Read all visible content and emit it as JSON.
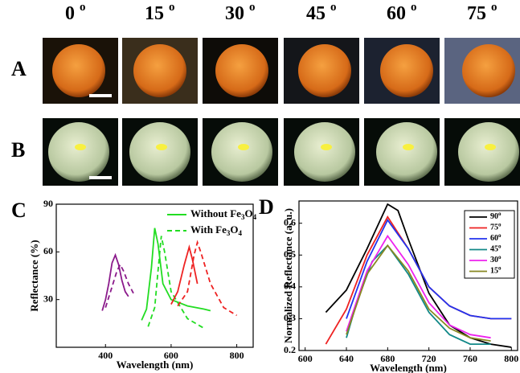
{
  "degree_mark": "o",
  "header": {
    "angles": [
      "0",
      "15",
      "30",
      "45",
      "60",
      "75"
    ]
  },
  "rows": [
    "A",
    "B"
  ],
  "chart_data": [
    {
      "type": "line",
      "panel": "C",
      "xlabel": "Wavelength (nm)",
      "ylabel": "Reflectance (%)",
      "xlim": [
        250,
        850
      ],
      "ylim": [
        0,
        90
      ],
      "xticks": [
        400,
        600,
        800
      ],
      "yticks": [
        30,
        60,
        90
      ],
      "legend": [
        {
          "name": "Without Fe3O4",
          "color": "#22dd22",
          "dashed": false
        },
        {
          "name": "With Fe3O4",
          "color": "#22dd22",
          "dashed": true
        }
      ],
      "series": [
        {
          "color": "#8b1a8b",
          "dashed": false,
          "x": [
            390,
            400,
            410,
            420,
            430,
            440,
            450,
            460,
            470
          ],
          "values": [
            23,
            30,
            40,
            53,
            58,
            52,
            42,
            35,
            32
          ]
        },
        {
          "color": "#8b1a8b",
          "dashed": true,
          "x": [
            400,
            420,
            435,
            445,
            455,
            470,
            485
          ],
          "values": [
            25,
            38,
            48,
            52,
            48,
            40,
            34
          ]
        },
        {
          "color": "#22dd22",
          "dashed": false,
          "x": [
            510,
            525,
            540,
            550,
            560,
            575,
            600,
            650,
            700,
            720
          ],
          "values": [
            17,
            24,
            50,
            75,
            65,
            40,
            30,
            26,
            24,
            23
          ]
        },
        {
          "color": "#22dd22",
          "dashed": true,
          "x": [
            530,
            550,
            560,
            570,
            580,
            600,
            650,
            700
          ],
          "values": [
            13,
            25,
            48,
            70,
            60,
            35,
            18,
            12
          ]
        },
        {
          "color": "#ee2222",
          "dashed": false,
          "x": [
            600,
            620,
            640,
            655,
            665,
            680
          ],
          "values": [
            27,
            35,
            52,
            63,
            55,
            40
          ]
        },
        {
          "color": "#ee2222",
          "dashed": true,
          "x": [
            620,
            650,
            670,
            680,
            690,
            720,
            760,
            800
          ],
          "values": [
            26,
            35,
            58,
            66,
            60,
            40,
            25,
            20
          ]
        }
      ]
    },
    {
      "type": "line",
      "panel": "D",
      "xlabel": "Wavelength (nm)",
      "ylabel": "Normalized Reflectance (a. u.)",
      "xlim": [
        594,
        806
      ],
      "ylim": [
        0.2,
        0.67
      ],
      "xticks": [
        600,
        640,
        680,
        720,
        760,
        800
      ],
      "yticks": [
        0.2,
        0.3,
        0.4,
        0.5,
        0.6
      ],
      "series": [
        {
          "name": "90",
          "color": "#000000",
          "dashed": false,
          "x": [
            620,
            640,
            660,
            680,
            690,
            700,
            720,
            740,
            760,
            780,
            800
          ],
          "values": [
            0.32,
            0.39,
            0.52,
            0.66,
            0.64,
            0.55,
            0.38,
            0.28,
            0.24,
            0.22,
            0.21
          ]
        },
        {
          "name": "75",
          "color": "#ee2222",
          "dashed": false,
          "x": [
            620,
            640,
            660,
            680,
            700,
            720,
            740,
            760,
            780,
            800
          ],
          "values": [
            0.22,
            0.33,
            0.5,
            0.62,
            0.52,
            0.4,
            0.34,
            0.31,
            0.3,
            0.3
          ]
        },
        {
          "name": "60",
          "color": "#2233ee",
          "dashed": false,
          "x": [
            640,
            660,
            680,
            700,
            720,
            740,
            760,
            780,
            800
          ],
          "values": [
            0.3,
            0.48,
            0.61,
            0.52,
            0.4,
            0.34,
            0.31,
            0.3,
            0.3
          ]
        },
        {
          "name": "45",
          "color": "#118888",
          "dashed": false,
          "x": [
            640,
            650,
            665,
            680,
            700,
            720,
            740,
            760,
            780
          ],
          "values": [
            0.24,
            0.35,
            0.48,
            0.53,
            0.44,
            0.32,
            0.25,
            0.22,
            0.22
          ]
        },
        {
          "name": "30",
          "color": "#ee22ee",
          "dashed": false,
          "x": [
            640,
            660,
            680,
            700,
            720,
            740,
            760,
            780
          ],
          "values": [
            0.26,
            0.45,
            0.56,
            0.47,
            0.35,
            0.28,
            0.25,
            0.24
          ]
        },
        {
          "name": "15",
          "color": "#888822",
          "dashed": false,
          "x": [
            640,
            660,
            680,
            700,
            720,
            740,
            760,
            780
          ],
          "values": [
            0.25,
            0.44,
            0.53,
            0.45,
            0.33,
            0.27,
            0.24,
            0.23
          ]
        }
      ]
    }
  ]
}
